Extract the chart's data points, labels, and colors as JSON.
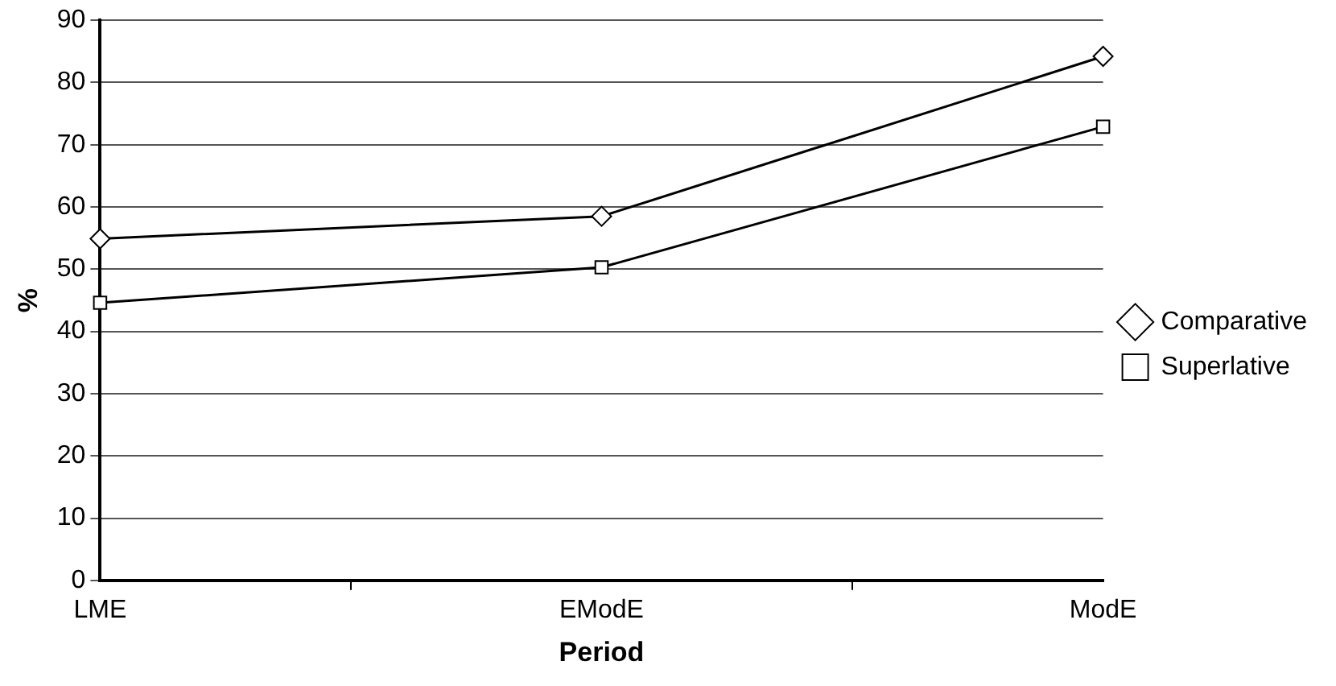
{
  "chart_data": {
    "type": "line",
    "xlabel": "Period",
    "ylabel": "%",
    "categories": [
      "LME",
      "EModE",
      "ModE"
    ],
    "series": [
      {
        "name": "Comparative",
        "color": "#000000",
        "marker": "diamond",
        "values": [
          54.9,
          58.5,
          84.2
        ]
      },
      {
        "name": "Superlative",
        "color": "#000000",
        "marker": "square",
        "values": [
          44.6,
          50.3,
          72.9
        ]
      }
    ],
    "ylim": [
      0,
      90
    ],
    "yticks": [
      0,
      10,
      20,
      30,
      40,
      50,
      60,
      70,
      80,
      90
    ],
    "grid": "y",
    "legend": "right",
    "line_style": "solid"
  }
}
